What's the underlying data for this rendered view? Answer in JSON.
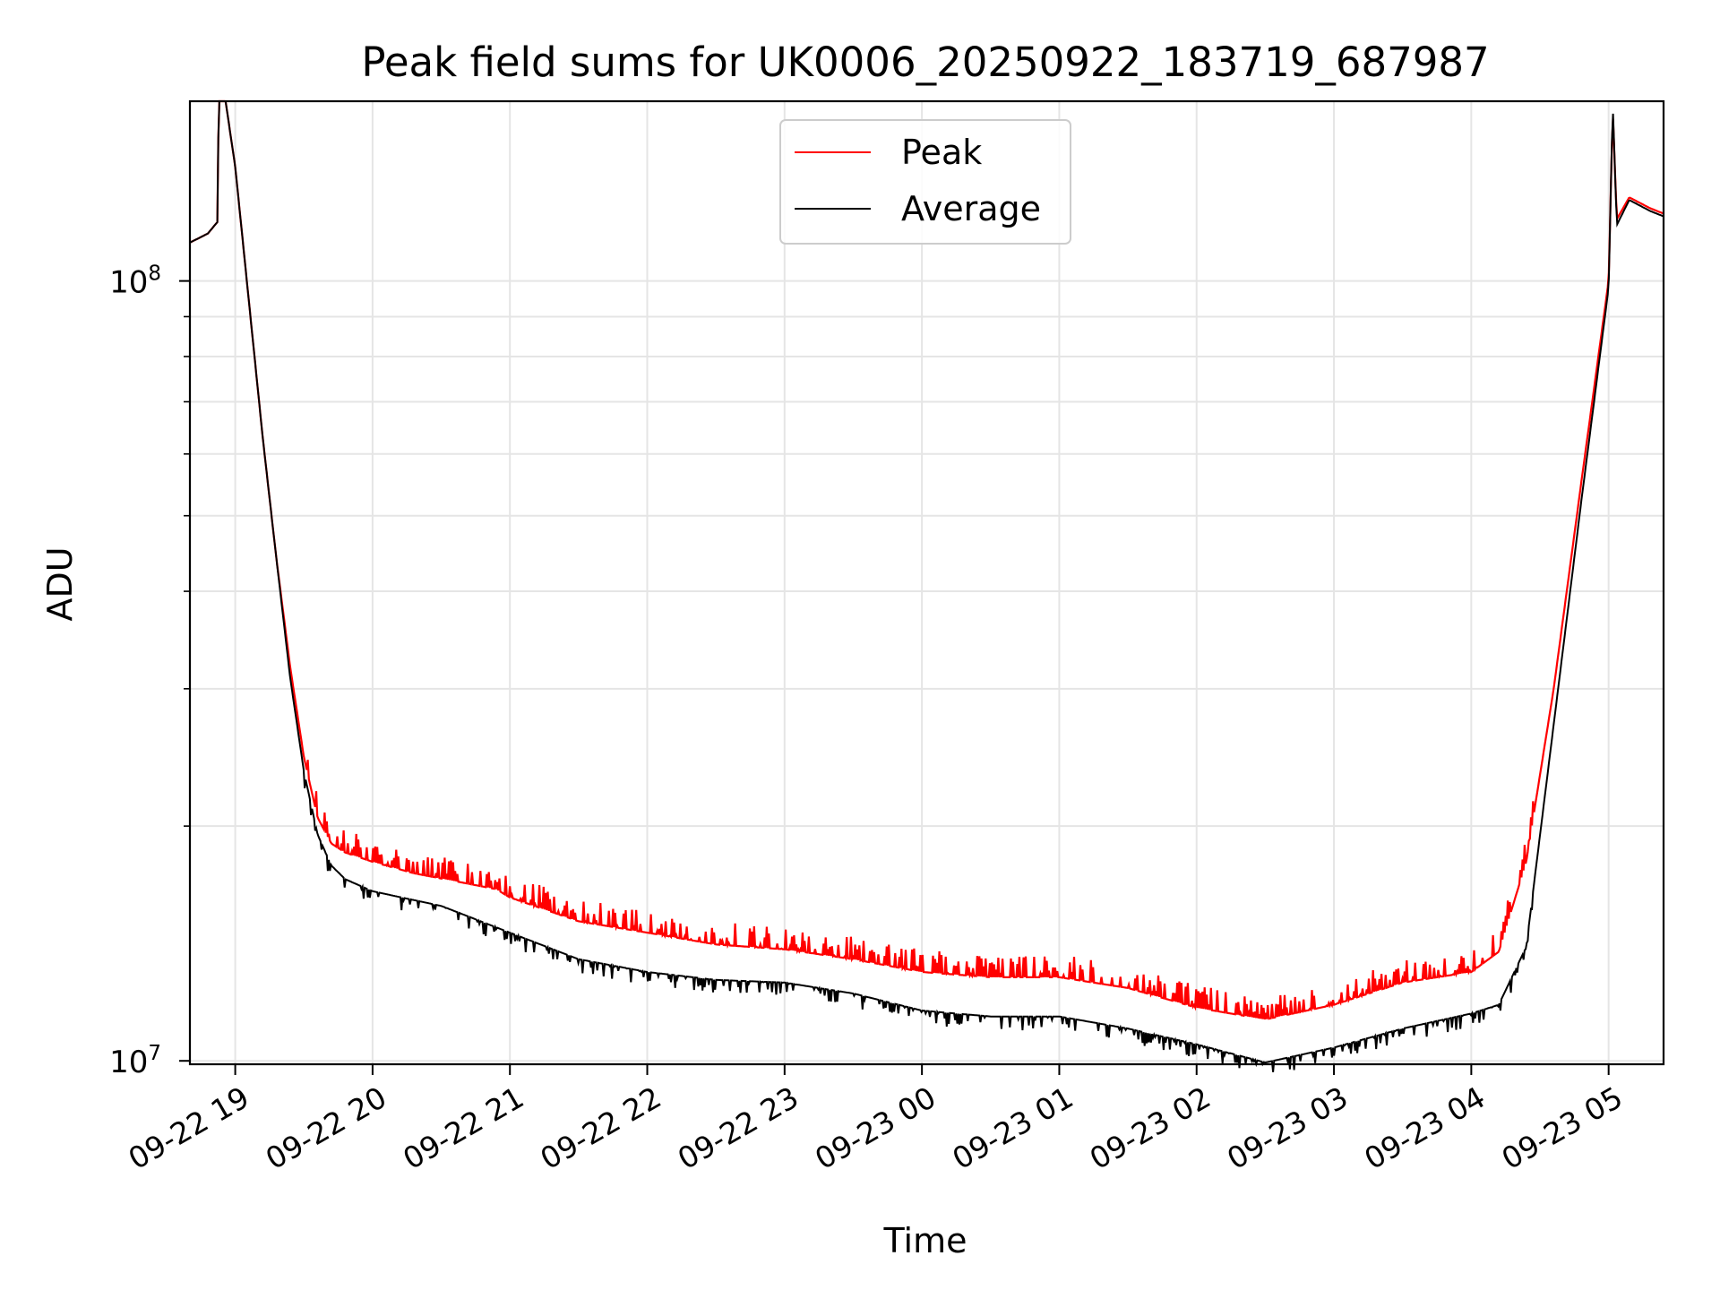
{
  "chart_data": {
    "type": "line",
    "title": "Peak field sums for UK0006_20250922_183719_687987",
    "xlabel": "Time",
    "ylabel": "ADU",
    "yscale": "log",
    "ylim": [
      9900000,
      170000000
    ],
    "xlim_hours": [
      -0.33,
      10.4
    ],
    "grid": true,
    "legend_position": "top-center",
    "x_ticks": [
      "09-22 19",
      "09-22 20",
      "09-22 21",
      "09-22 22",
      "09-22 23",
      "09-23 00",
      "09-23 01",
      "09-23 02",
      "09-23 03",
      "09-23 04",
      "09-23 05"
    ],
    "y_ticks": [
      {
        "base": "10",
        "exp": "7",
        "value": 10000000
      },
      {
        "base": "10",
        "exp": "8",
        "value": 100000000
      }
    ],
    "series": [
      {
        "name": "Peak",
        "color": "#ff0000",
        "note": "sampled envelope; time in hours since 09-22 19:00",
        "points": [
          [
            -0.33,
            112000000
          ],
          [
            -0.2,
            115000000
          ],
          [
            -0.13,
            119000000
          ],
          [
            -0.12,
            170000000
          ],
          [
            -0.07,
            170000000
          ],
          [
            0.0,
            140000000
          ],
          [
            0.1,
            94000000
          ],
          [
            0.2,
            63000000
          ],
          [
            0.3,
            44000000
          ],
          [
            0.4,
            32000000
          ],
          [
            0.5,
            24500000
          ],
          [
            0.6,
            20500000
          ],
          [
            0.7,
            19000000
          ],
          [
            0.8,
            18500000
          ],
          [
            1.0,
            18000000
          ],
          [
            1.3,
            17400000
          ],
          [
            1.6,
            17000000
          ],
          [
            1.9,
            16600000
          ],
          [
            2.0,
            16200000
          ],
          [
            2.5,
            15100000
          ],
          [
            3.0,
            14600000
          ],
          [
            3.5,
            14100000
          ],
          [
            4.0,
            13900000
          ],
          [
            4.5,
            13500000
          ],
          [
            5.0,
            13000000
          ],
          [
            5.5,
            12800000
          ],
          [
            6.0,
            12800000
          ],
          [
            6.5,
            12400000
          ],
          [
            7.0,
            11700000
          ],
          [
            7.5,
            11300000
          ],
          [
            8.0,
            11800000
          ],
          [
            8.5,
            12600000
          ],
          [
            9.0,
            13000000
          ],
          [
            9.2,
            13800000
          ],
          [
            9.4,
            18000000
          ],
          [
            9.6,
            30000000
          ],
          [
            9.8,
            55000000
          ],
          [
            10.0,
            100000000
          ],
          [
            10.03,
            165000000
          ],
          [
            10.06,
            120000000
          ],
          [
            10.15,
            128000000
          ],
          [
            10.3,
            124000000
          ],
          [
            10.4,
            122000000
          ]
        ]
      },
      {
        "name": "Average",
        "color": "#000000",
        "note": "sampled; time in hours since 09-22 19:00",
        "points": [
          [
            -0.33,
            112000000
          ],
          [
            -0.2,
            115000000
          ],
          [
            -0.13,
            119000000
          ],
          [
            -0.12,
            170000000
          ],
          [
            -0.07,
            170000000
          ],
          [
            0.0,
            140000000
          ],
          [
            0.1,
            94000000
          ],
          [
            0.2,
            63000000
          ],
          [
            0.3,
            44000000
          ],
          [
            0.4,
            31000000
          ],
          [
            0.5,
            23500000
          ],
          [
            0.6,
            19500000
          ],
          [
            0.7,
            17800000
          ],
          [
            0.8,
            17100000
          ],
          [
            1.0,
            16500000
          ],
          [
            1.5,
            15800000
          ],
          [
            2.0,
            14600000
          ],
          [
            2.5,
            13500000
          ],
          [
            3.0,
            13000000
          ],
          [
            3.5,
            12700000
          ],
          [
            4.0,
            12600000
          ],
          [
            4.5,
            12200000
          ],
          [
            5.0,
            11600000
          ],
          [
            5.5,
            11400000
          ],
          [
            6.0,
            11400000
          ],
          [
            6.5,
            11000000
          ],
          [
            7.0,
            10500000
          ],
          [
            7.5,
            9950000
          ],
          [
            8.0,
            10400000
          ],
          [
            8.5,
            11000000
          ],
          [
            9.0,
            11500000
          ],
          [
            9.2,
            11800000
          ],
          [
            9.4,
            14000000
          ],
          [
            9.6,
            27000000
          ],
          [
            9.8,
            52000000
          ],
          [
            10.0,
            98000000
          ],
          [
            10.03,
            168000000
          ],
          [
            10.06,
            118000000
          ],
          [
            10.15,
            127000000
          ],
          [
            10.3,
            123000000
          ],
          [
            10.4,
            121000000
          ]
        ]
      }
    ]
  }
}
